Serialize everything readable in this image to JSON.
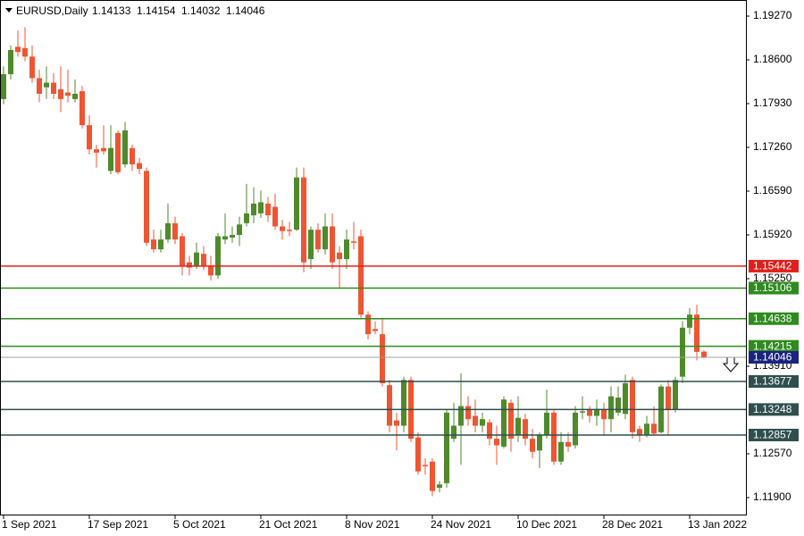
{
  "chart_data": {
    "type": "candlestick",
    "symbol": "EURUSD,Daily",
    "open": [
      1.18,
      1.1838,
      1.188,
      1.1878,
      1.1865,
      1.1832,
      1.1818,
      1.1825,
      1.1815,
      1.181,
      1.18,
      1.1812,
      1.176,
      1.1723,
      1.1725,
      1.169,
      1.1748,
      1.17,
      1.1725,
      1.1702,
      1.169,
      1.1585,
      1.157,
      1.1585,
      1.161,
      1.159,
      1.155,
      1.1545,
      1.1563,
      1.1545,
      1.153,
      1.1585,
      1.1588,
      1.1592,
      1.161,
      1.1622,
      1.1625,
      1.164,
      1.1635,
      1.1605,
      1.16,
      1.16,
      1.168,
      1.1555,
      1.16,
      1.157,
      1.1605,
      1.1565,
      1.1555,
      1.1582,
      1.159,
      1.147,
      1.1448,
      1.144,
      1.1362,
      1.1308,
      1.13,
      1.137,
      1.1282,
      1.124,
      1.1245,
      1.1205,
      1.1212,
      1.128,
      1.13,
      1.133,
      1.1315,
      1.13,
      1.1305,
      1.128,
      1.1268,
      1.1335,
      1.1285,
      1.131,
      1.128,
      1.1262,
      1.1285,
      1.132,
      1.1245,
      1.1275,
      1.127,
      1.132,
      1.1325,
      1.1315,
      1.1325,
      1.131,
      1.132,
      1.1318,
      1.137,
      1.1295,
      1.1285,
      1.1303,
      1.129,
      1.136,
      1.1325,
      1.1375,
      1.145,
      1.147,
      1.14133
    ],
    "high": [
      1.185,
      1.1882,
      1.1905,
      1.191,
      1.1882,
      1.1845,
      1.185,
      1.184,
      1.185,
      1.1845,
      1.183,
      1.182,
      1.1775,
      1.173,
      1.176,
      1.176,
      1.1752,
      1.1765,
      1.173,
      1.171,
      1.1695,
      1.16,
      1.16,
      1.164,
      1.162,
      1.1595,
      1.156,
      1.158,
      1.1575,
      1.156,
      1.1595,
      1.1625,
      1.1605,
      1.162,
      1.167,
      1.1665,
      1.166,
      1.165,
      1.1655,
      1.1615,
      1.1612,
      1.1695,
      1.1695,
      1.1605,
      1.161,
      1.1625,
      1.1625,
      1.1575,
      1.16,
      1.1612,
      1.16,
      1.1475,
      1.146,
      1.1465,
      1.137,
      1.132,
      1.1375,
      1.1375,
      1.129,
      1.125,
      1.125,
      1.1215,
      1.1325,
      1.1335,
      1.138,
      1.1345,
      1.134,
      1.132,
      1.131,
      1.13,
      1.1345,
      1.134,
      1.1345,
      1.1318,
      1.1295,
      1.129,
      1.1355,
      1.1325,
      1.129,
      1.129,
      1.133,
      1.1345,
      1.133,
      1.134,
      1.1335,
      1.136,
      1.136,
      1.1378,
      1.1375,
      1.13,
      1.1315,
      1.133,
      1.1363,
      1.137,
      1.1375,
      1.146,
      1.148,
      1.1485,
      1.14154
    ],
    "low": [
      1.1792,
      1.183,
      1.1865,
      1.1858,
      1.1825,
      1.1795,
      1.18,
      1.18,
      1.178,
      1.1795,
      1.1795,
      1.1755,
      1.1715,
      1.1695,
      1.1715,
      1.1685,
      1.1685,
      1.1695,
      1.169,
      1.1685,
      1.1575,
      1.1565,
      1.1565,
      1.158,
      1.1578,
      1.153,
      1.153,
      1.154,
      1.1538,
      1.1522,
      1.1525,
      1.1578,
      1.158,
      1.1575,
      1.1605,
      1.161,
      1.1618,
      1.1612,
      1.16,
      1.1585,
      1.159,
      1.1598,
      1.1535,
      1.154,
      1.1565,
      1.1562,
      1.154,
      1.151,
      1.154,
      1.157,
      1.1465,
      1.1432,
      1.144,
      1.136,
      1.129,
      1.1262,
      1.129,
      1.1275,
      1.1225,
      1.1225,
      1.1192,
      1.1198,
      1.1205,
      1.1275,
      1.124,
      1.13,
      1.129,
      1.129,
      1.127,
      1.124,
      1.1265,
      1.126,
      1.1275,
      1.127,
      1.125,
      1.1235,
      1.128,
      1.124,
      1.124,
      1.126,
      1.1265,
      1.131,
      1.1305,
      1.13,
      1.1285,
      1.129,
      1.1315,
      1.131,
      1.128,
      1.1275,
      1.1282,
      1.1285,
      1.1288,
      1.1285,
      1.132,
      1.1365,
      1.144,
      1.14,
      1.14032
    ],
    "close": [
      1.1838,
      1.1875,
      1.1872,
      1.1865,
      1.1832,
      1.1808,
      1.1825,
      1.1808,
      1.18,
      1.1805,
      1.1808,
      1.176,
      1.1723,
      1.1718,
      1.172,
      1.1725,
      1.1688,
      1.1752,
      1.17,
      1.1693,
      1.158,
      1.157,
      1.1585,
      1.161,
      1.1585,
      1.1545,
      1.1542,
      1.1565,
      1.1545,
      1.153,
      1.159,
      1.159,
      1.1592,
      1.1608,
      1.1625,
      1.164,
      1.1642,
      1.1622,
      1.1605,
      1.1598,
      1.1598,
      1.168,
      1.155,
      1.16,
      1.157,
      1.1605,
      1.155,
      1.1555,
      1.1585,
      1.158,
      1.147,
      1.144,
      1.1445,
      1.1365,
      1.13,
      1.13,
      1.137,
      1.128,
      1.123,
      1.1238,
      1.12,
      1.121,
      1.132,
      1.13,
      1.133,
      1.131,
      1.13,
      1.131,
      1.128,
      1.127,
      1.134,
      1.128,
      1.1312,
      1.128,
      1.126,
      1.1285,
      1.132,
      1.1245,
      1.1275,
      1.1268,
      1.132,
      1.1322,
      1.1315,
      1.1325,
      1.131,
      1.1345,
      1.1343,
      1.1365,
      1.129,
      1.1285,
      1.1303,
      1.1288,
      1.136,
      1.1325,
      1.137,
      1.145,
      1.147,
      1.1413,
      1.14046
    ],
    "up_color": "#4f8a2b",
    "down_color": "#ee5533",
    "price_line_color": "#a0a0a0",
    "price_label_color": "#1a237e",
    "levels": [
      {
        "value": 1.15442,
        "color": "#e0201c"
      },
      {
        "value": 1.15106,
        "color": "#2e8b1e"
      },
      {
        "value": 1.14638,
        "color": "#2e8b1e"
      },
      {
        "value": 1.14215,
        "color": "#2e8b1e"
      },
      {
        "value": 1.13677,
        "color": "#2f4f4f"
      },
      {
        "value": 1.13248,
        "color": "#2f4f4f"
      },
      {
        "value": 1.12857,
        "color": "#2f4f4f"
      }
    ],
    "ylim": [
      1.11626,
      1.19516
    ],
    "yticks": [
      {
        "value": 1.1927,
        "label": "1.19270"
      },
      {
        "value": 1.186,
        "label": "1.18600"
      },
      {
        "value": 1.1793,
        "label": "1.17930"
      },
      {
        "value": 1.1726,
        "label": "1.17260"
      },
      {
        "value": 1.1659,
        "label": "1.16590"
      },
      {
        "value": 1.1592,
        "label": "1.15920"
      },
      {
        "value": 1.1525,
        "label": "1.15250"
      },
      {
        "value": 1.1391,
        "label": "1.13910"
      },
      {
        "value": 1.1257,
        "label": "1.12570"
      },
      {
        "value": 1.119,
        "label": "1.11900"
      }
    ],
    "xlabels": [
      {
        "index": 0,
        "label": "1 Sep 2021"
      },
      {
        "index": 12,
        "label": "17 Sep 2021"
      },
      {
        "index": 24,
        "label": "5 Oct 2021"
      },
      {
        "index": 36,
        "label": "21 Oct 2021"
      },
      {
        "index": 48,
        "label": "8 Nov 2021"
      },
      {
        "index": 60,
        "label": "24 Nov 2021"
      },
      {
        "index": 72,
        "label": "10 Dec 2021"
      },
      {
        "index": 84,
        "label": "28 Dec 2021"
      },
      {
        "index": 96,
        "label": "13 Jan 2022"
      }
    ]
  }
}
